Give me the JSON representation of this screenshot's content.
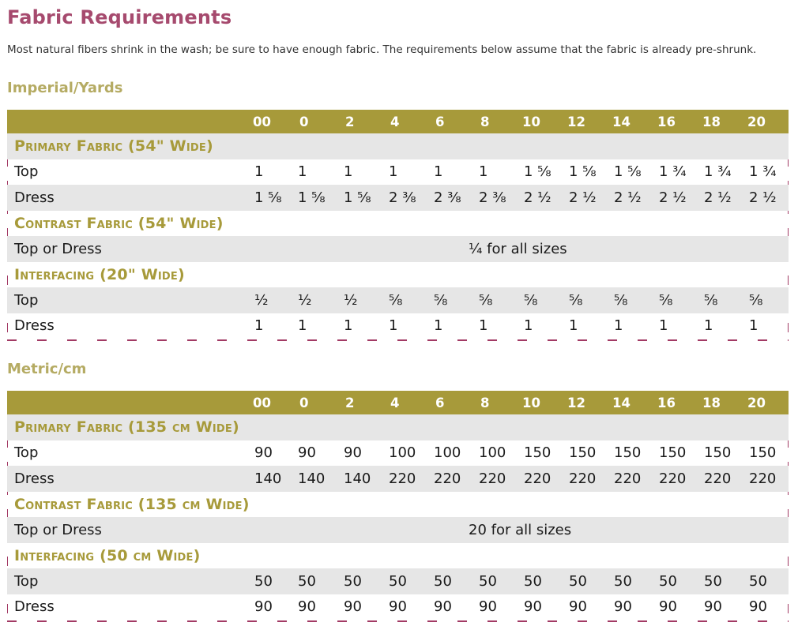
{
  "title": "Fabric Requirements",
  "intro": "Most natural fibers shrink in the wash; be sure to have enough fabric. The requirements below assume that the fabric is already pre-shrunk.",
  "imperial": {
    "heading": "Imperial/Yards",
    "sizes": [
      "00",
      "0",
      "2",
      "4",
      "6",
      "8",
      "10",
      "12",
      "14",
      "16",
      "18",
      "20"
    ],
    "primary": {
      "title": "Primary Fabric (54\" Wide)",
      "rows": [
        {
          "label": "Top",
          "values": [
            "1",
            "1",
            "1",
            "1",
            "1",
            "1",
            "1 ⅝",
            "1 ⅝",
            "1 ⅝",
            "1 ¾",
            "1 ¾",
            "1 ¾"
          ]
        },
        {
          "label": "Dress",
          "values": [
            "1 ⅝",
            "1 ⅝",
            "1 ⅝",
            "2 ⅜",
            "2 ⅜",
            "2 ⅜",
            "2 ½",
            "2 ½",
            "2 ½",
            "2 ½",
            "2 ½",
            "2 ½"
          ]
        }
      ]
    },
    "contrast": {
      "title": "Contrast Fabric (54\" Wide)",
      "label": "Top or Dress",
      "value": "¼ for all sizes"
    },
    "interfacing": {
      "title": "Interfacing (20\" Wide)",
      "rows": [
        {
          "label": "Top",
          "values": [
            "½",
            "½",
            "½",
            "⅝",
            "⅝",
            "⅝",
            "⅝",
            "⅝",
            "⅝",
            "⅝",
            "⅝",
            "⅝"
          ]
        },
        {
          "label": "Dress",
          "values": [
            "1",
            "1",
            "1",
            "1",
            "1",
            "1",
            "1",
            "1",
            "1",
            "1",
            "1",
            "1"
          ]
        }
      ]
    }
  },
  "metric": {
    "heading": "Metric/cm",
    "sizes": [
      "00",
      "0",
      "2",
      "4",
      "6",
      "8",
      "10",
      "12",
      "14",
      "16",
      "18",
      "20"
    ],
    "primary": {
      "title": "Primary Fabric (135 cm Wide)",
      "rows": [
        {
          "label": "Top",
          "values": [
            "90",
            "90",
            "90",
            "100",
            "100",
            "100",
            "150",
            "150",
            "150",
            "150",
            "150",
            "150"
          ]
        },
        {
          "label": "Dress",
          "values": [
            "140",
            "140",
            "140",
            "220",
            "220",
            "220",
            "220",
            "220",
            "220",
            "220",
            "220",
            "220"
          ]
        }
      ]
    },
    "contrast": {
      "title": "Contrast Fabric (135 cm Wide)",
      "label": "Top or Dress",
      "value": "20 for all sizes"
    },
    "interfacing": {
      "title": "Interfacing (50 cm Wide)",
      "rows": [
        {
          "label": "Top",
          "values": [
            "50",
            "50",
            "50",
            "50",
            "50",
            "50",
            "50",
            "50",
            "50",
            "50",
            "50",
            "50"
          ]
        },
        {
          "label": "Dress",
          "values": [
            "90",
            "90",
            "90",
            "90",
            "90",
            "90",
            "90",
            "90",
            "90",
            "90",
            "90",
            "90"
          ]
        }
      ]
    }
  },
  "colors": {
    "title": "#a64a6e",
    "section": "#b5ab63",
    "header": "#a79a3a",
    "dash": "#a23a64",
    "stripe": "#e6e6e6"
  }
}
